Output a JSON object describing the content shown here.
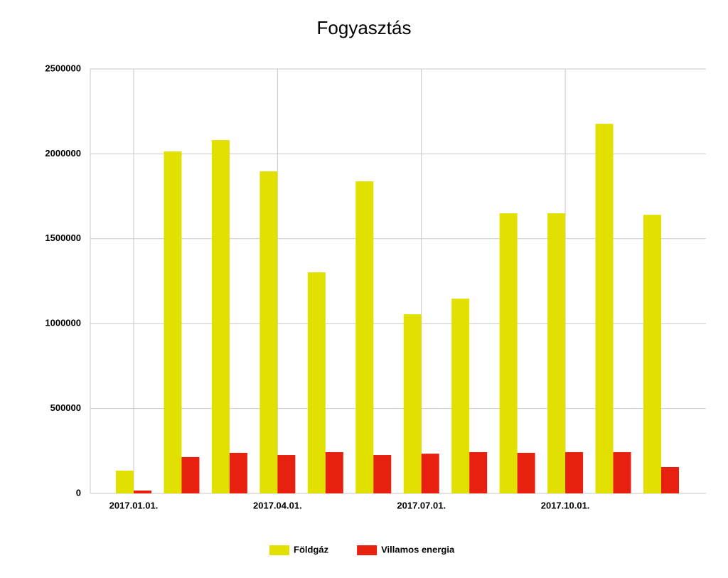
{
  "chart_data": {
    "type": "bar",
    "title": "Fogyasztás",
    "categories": [
      "2017.01.01.",
      null,
      null,
      "2017.04.01.",
      null,
      null,
      "2017.07.01.",
      null,
      null,
      "2017.10.01.",
      null,
      null
    ],
    "series": [
      {
        "name": "Földgáz",
        "color": "#e2e000",
        "values": [
          134000,
          2014000,
          2081000,
          1897000,
          1302000,
          1838000,
          1055000,
          1147000,
          1650000,
          1650000,
          2177000,
          1641000
        ]
      },
      {
        "name": "Villamos energia",
        "color": "#e8200f",
        "values": [
          17000,
          214000,
          239000,
          226000,
          243000,
          226000,
          234000,
          243000,
          239000,
          243000,
          243000,
          155000
        ]
      }
    ],
    "ylim": [
      0,
      2500000
    ],
    "yticks": [
      0,
      500000,
      1000000,
      1500000,
      2000000,
      2500000
    ],
    "grid": true,
    "legend": "bottom"
  }
}
